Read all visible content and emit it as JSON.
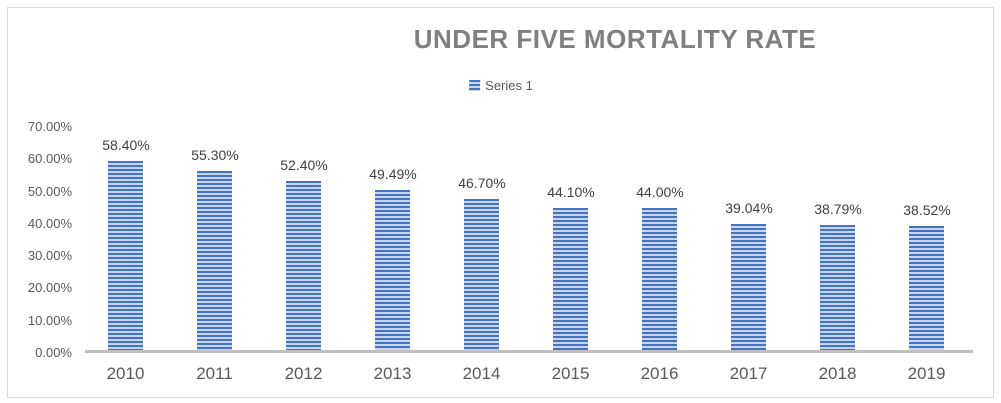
{
  "chart_data": {
    "type": "bar",
    "title": "UNDER FIVE MORTALITY RATE",
    "categories": [
      "2010",
      "2011",
      "2012",
      "2013",
      "2014",
      "2015",
      "2016",
      "2017",
      "2018",
      "2019"
    ],
    "series": [
      {
        "name": "Series 1",
        "values": [
          58.4,
          55.3,
          52.4,
          49.49,
          46.7,
          44.1,
          44.0,
          39.04,
          38.79,
          38.52
        ]
      }
    ],
    "data_labels": [
      "58.40%",
      "55.30%",
      "52.40%",
      "49.49%",
      "46.70%",
      "44.10%",
      "44.00%",
      "39.04%",
      "38.79%",
      "38.52%"
    ],
    "y_tick_labels": [
      "70.00%",
      "60.00%",
      "50.00%",
      "40.00%",
      "30.00%",
      "20.00%",
      "10.00%",
      "0.00%"
    ],
    "ylim": [
      0,
      70
    ],
    "grid": false,
    "legend_position": "top-center",
    "legend_entries": [
      "Series 1"
    ]
  },
  "colors": {
    "bar_stripe_dark": "#4472C4",
    "bar_stripe_light": "#C6D5F0",
    "title_text": "#7F7F7F",
    "axis_text": "#595959",
    "data_label_text": "#404040",
    "axis_line": "#BFBFBF",
    "chart_border": "#D9D9D9",
    "background": "#FFFFFF"
  }
}
